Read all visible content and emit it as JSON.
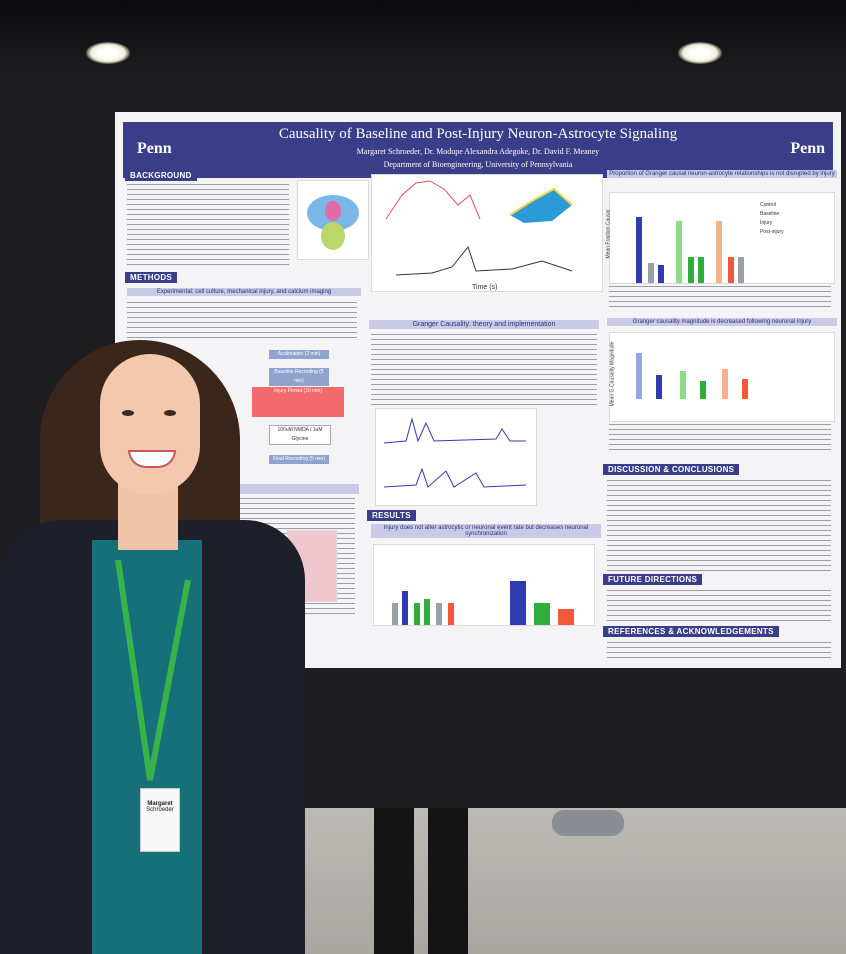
{
  "scene": "poster session photo",
  "poster": {
    "title": "Causality of Baseline and Post-Injury Neuron-Astrocyte Signaling",
    "authors": "Margaret Schroeder, Dr. Modupe Alexandra Adegoke, Dr. David F. Meaney",
    "department": "Department of Bioengineering, University of Pennsylvania",
    "logo_text": "Penn",
    "sections": {
      "background": "BACKGROUND",
      "methods": "METHODS",
      "results": "RESULTS",
      "discussion": "DISCUSSION & CONCLUSIONS",
      "future": "FUTURE DIRECTIONS",
      "references": "REFERENCES & ACKNOWLEDGEMENTS"
    },
    "subheads": {
      "methods_sub": "Experimental: cell culture, mechanical injury, and calcium imaging",
      "granger": "Granger Causality: theory and implementation",
      "results_sub": "Injury does not alter astrocytic or neuronal event rate but decreases neuronal synchronization",
      "proportion": "Proportion of Granger causal neuron-astrocyte relationships is not disrupted by injury",
      "magnitude": "Granger causality magnitude is decreased following neuronal injury"
    },
    "flowchart": [
      "Acclimation (2 min)",
      "Baseline Recording (5 min)",
      "Injury Period (20 min)",
      "100uM NMDA / 1uM Glycine",
      "Final Recording (5 min)"
    ],
    "legend": [
      "Control",
      "Baseline",
      "Injury",
      "Post-injury"
    ],
    "fraction_axis": "Mean Fraction Causal",
    "magnitude_axis": "Mean G-Causality Magnitude",
    "time_label": "Time (s)"
  },
  "badge": {
    "name": "Margaret",
    "surname": "Schroeder"
  },
  "colors": {
    "header": "#3a3d87",
    "control": "#9aa0a8",
    "baseline": "#2f3bb0",
    "injury": "#2fae3e",
    "post_injury": "#f05a3a",
    "lanyard": "#38b34a"
  }
}
